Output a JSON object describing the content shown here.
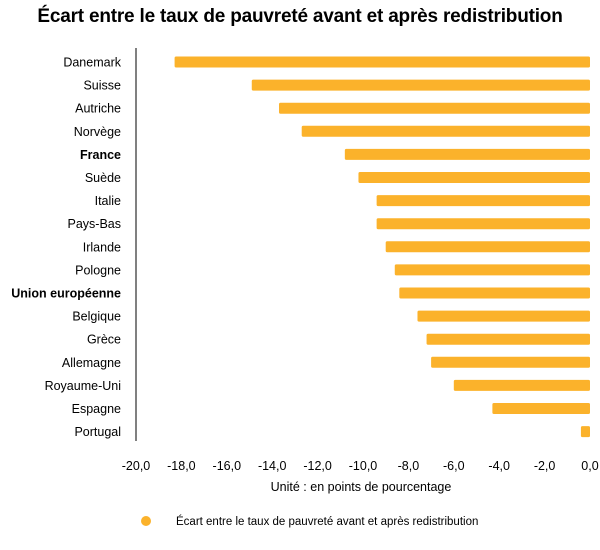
{
  "chart_data": {
    "type": "bar",
    "orientation": "horizontal",
    "title": "Écart entre le taux de pauvreté avant et après redistribution",
    "xlabel": "Unité : en points de pourcentage",
    "ylabel": "",
    "xlim": [
      -20,
      0
    ],
    "x_ticks": [
      "-20,0",
      "-18,0",
      "-16,0",
      "-14,0",
      "-12,0",
      "-10,0",
      "-8,0",
      "-6,0",
      "-4,0",
      "-2,0",
      "0,0"
    ],
    "grid": false,
    "legend_position": "bottom",
    "bar_color": "#FBB22B",
    "categories": [
      "Danemark",
      "Suisse",
      "Autriche",
      "Norvège",
      "France",
      "Suède",
      "Italie",
      "Pays-Bas",
      "Irlande",
      "Pologne",
      "Union européenne",
      "Belgique",
      "Grèce",
      "Allemagne",
      "Royaume-Uni",
      "Espagne",
      "Portugal"
    ],
    "highlighted": [
      "France",
      "Union européenne"
    ],
    "series": [
      {
        "name": "Écart entre le taux de pauvreté avant et après redistribution",
        "values": [
          -18.3,
          -14.9,
          -13.7,
          -12.7,
          -10.8,
          -10.2,
          -9.4,
          -9.4,
          -9.0,
          -8.6,
          -8.4,
          -7.6,
          -7.2,
          -7.0,
          -6.0,
          -4.3,
          -0.4
        ]
      }
    ]
  }
}
